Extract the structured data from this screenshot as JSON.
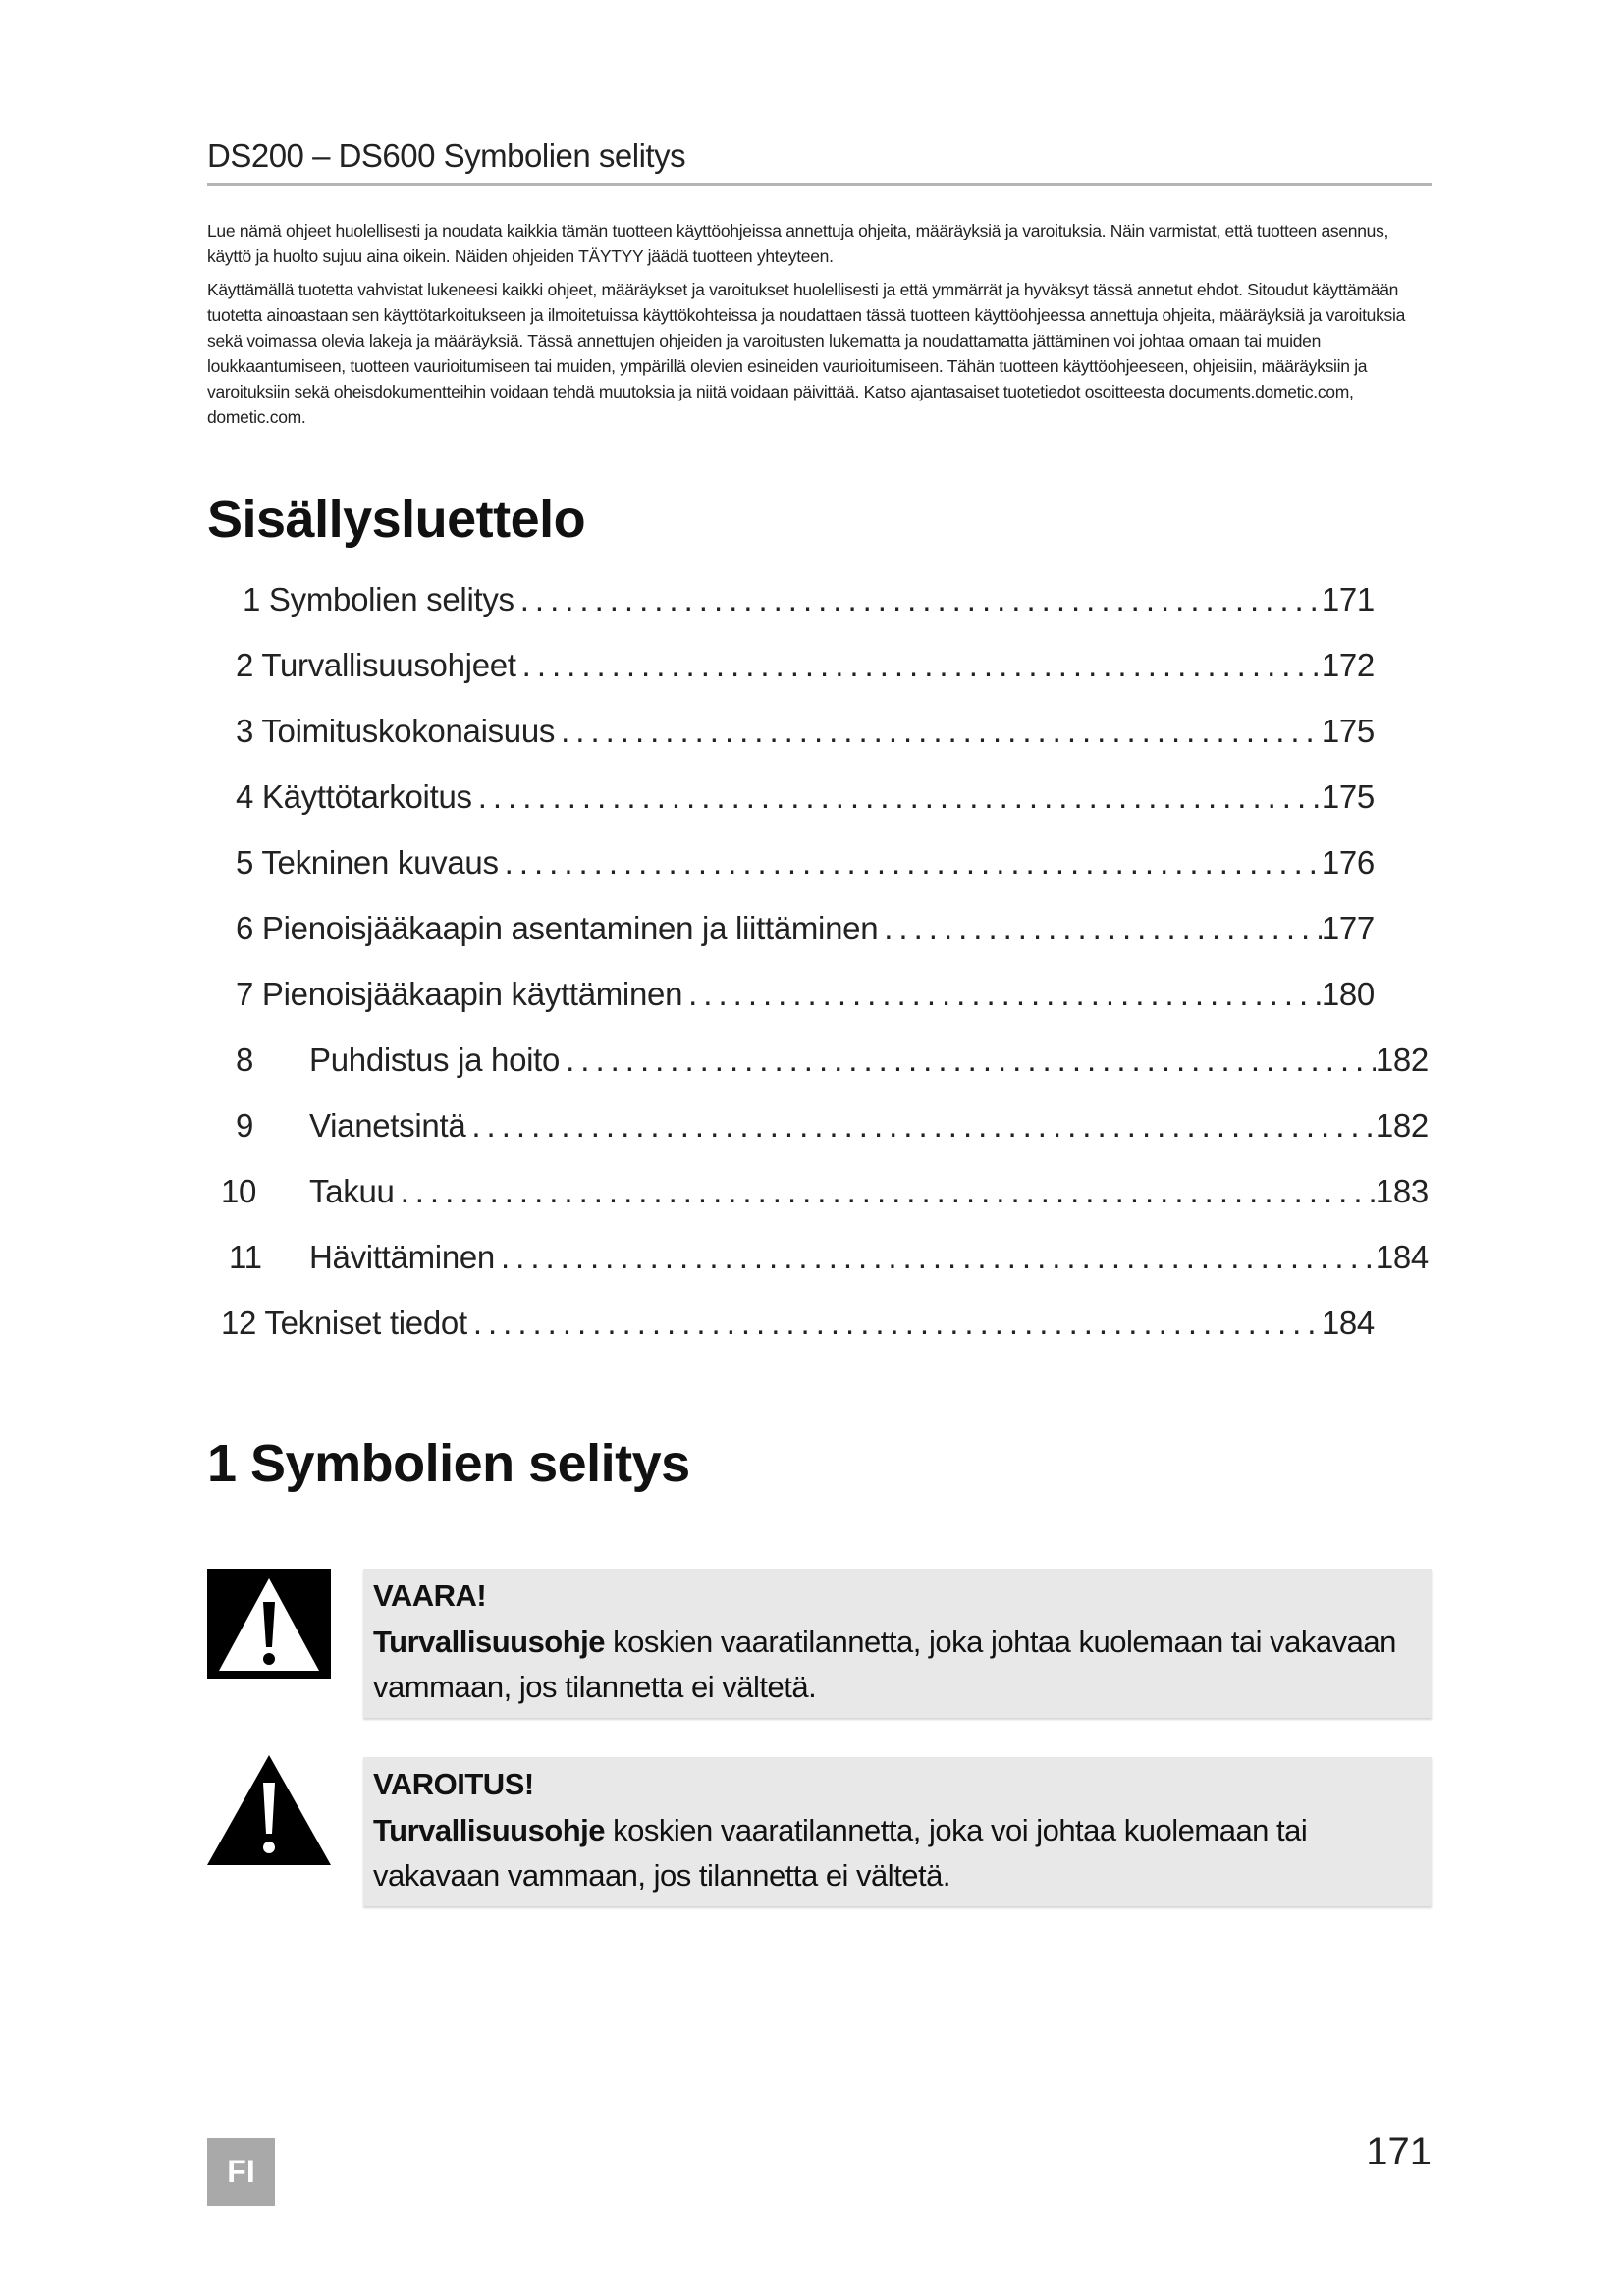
{
  "header": {
    "title": "DS200 – DS600 Symbolien selitys"
  },
  "intro": {
    "p1": "Lue nämä ohjeet huolellisesti ja noudata kaikkia tämän tuotteen käyttöohjeissa annettuja ohjeita, määräyksiä ja varoituksia. Näin varmistat, että tuotteen asennus, käyttö ja huolto sujuu aina oikein. Näiden ohjeiden TÄYTYY jäädä tuotteen yhteyteen.",
    "p2": "Käyttämällä tuotetta vahvistat lukeneesi kaikki ohjeet, määräykset ja varoitukset huolellisesti ja että ymmärrät ja hyväksyt tässä annetut ehdot. Sitoudut käyttämään tuotetta ainoastaan sen käyttötarkoitukseen ja ilmoitetuissa käyttökohteissa ja noudattaen tässä tuotteen käyttöohjeessa annettuja ohjeita, määräyksiä ja varoituksia sekä voimassa olevia lakeja ja määräyksiä. Tässä annettujen ohjeiden ja varoitusten lukematta ja noudattamatta jättäminen voi johtaa omaan tai muiden loukkaantumiseen, tuotteen vaurioitumiseen tai muiden, ympärillä olevien esineiden vaurioitumiseen. Tähän tuotteen käyttöohjeeseen, ohjeisiin, määräyksiin ja varoituksiin sekä oheisdokumentteihin voidaan tehdä muutoksia ja niitä voidaan päivittää. Katso ajantasaiset tuotetiedot osoitteesta documents.dometic.com, dometic.com."
  },
  "toc": {
    "title": "Sisällysluettelo",
    "items": [
      {
        "label": "1 Symbolien selitys",
        "page": "171"
      },
      {
        "label": "2 Turvallisuusohjeet",
        "page": "172"
      },
      {
        "label": "3 Toimituskokonaisuus",
        "page": "175"
      },
      {
        "label": "4 Käyttötarkoitus",
        "page": "175"
      },
      {
        "label": "5 Tekninen kuvaus",
        "page": "176"
      },
      {
        "label": "6 Pienoisjääkaapin asentaminen ja liittäminen",
        "page": "177"
      },
      {
        "label": "7 Pienoisjääkaapin käyttäminen",
        "page": "180"
      },
      {
        "num": "8",
        "label": "Puhdistus ja hoito",
        "page": "182"
      },
      {
        "num": "9",
        "label": "Vianetsintä",
        "page": "182"
      },
      {
        "num": "10",
        "label": "Takuu",
        "page": "183"
      },
      {
        "num": "11",
        "label": "Hävittäminen",
        "page": "184"
      },
      {
        "label": "12 Tekniset tiedot",
        "page": "184"
      }
    ]
  },
  "section1": {
    "title": "1 Symbolien selitys",
    "notices": [
      {
        "icon": "danger-warning-triangle-icon",
        "title": "VAARA!",
        "bold": "Turvallisuusohje",
        "text": " koskien vaaratilannetta, joka johtaa kuolemaan tai vakavaan vammaan, jos tilannetta ei vältetä."
      },
      {
        "icon": "warning-triangle-icon",
        "title": "VAROITUS!",
        "bold": "Turvallisuusohje",
        "text": " koskien vaaratilannetta, joka voi johtaa kuolemaan tai vakavaan vammaan, jos tilannetta ei vältetä."
      }
    ]
  },
  "footer": {
    "language": "FI",
    "page_number": "171"
  }
}
